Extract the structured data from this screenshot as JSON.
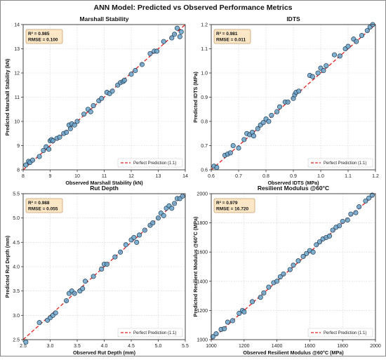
{
  "figure_title": "ANN Model: Predicted vs Observed Performance Metrics",
  "colors": {
    "point_fill": "#6aa3c8",
    "point_stroke": "#1f3a52",
    "fit_line": "#e02020",
    "grid": "#d8d8d8",
    "stats_box_fill": "#fbe7c6",
    "stats_box_stroke": "#c8a070"
  },
  "chart_data": [
    {
      "type": "scatter",
      "title": "Marshall Stability",
      "xlabel": "Observed Marshall Stability (kN)",
      "ylabel": "Predicted Marshall Stability (kN)",
      "xlim": [
        8,
        14
      ],
      "ylim": [
        8,
        14
      ],
      "xticks": [
        "8",
        "9",
        "10",
        "11",
        "12",
        "13",
        "14"
      ],
      "yticks": [
        "8",
        "9",
        "10",
        "11",
        "12",
        "13",
        "14"
      ],
      "grid": true,
      "legend_label": "Perfect Prediction (1:1)",
      "legend_position": "bottom-right",
      "stats": [
        "R² = 0.985",
        "RMSE = 0.100"
      ],
      "points": [
        [
          8.1,
          8.2
        ],
        [
          8.2,
          8.35
        ],
        [
          8.25,
          8.3
        ],
        [
          8.35,
          8.4
        ],
        [
          8.6,
          8.55
        ],
        [
          8.75,
          8.8
        ],
        [
          8.85,
          8.95
        ],
        [
          8.95,
          8.85
        ],
        [
          9.0,
          9.2
        ],
        [
          9.05,
          9.25
        ],
        [
          9.1,
          9.2
        ],
        [
          9.25,
          9.3
        ],
        [
          9.35,
          9.35
        ],
        [
          9.5,
          9.5
        ],
        [
          9.6,
          9.55
        ],
        [
          9.7,
          9.85
        ],
        [
          9.75,
          9.7
        ],
        [
          9.8,
          9.9
        ],
        [
          9.9,
          9.85
        ],
        [
          10.0,
          10.0
        ],
        [
          10.25,
          10.3
        ],
        [
          10.4,
          10.5
        ],
        [
          10.5,
          10.4
        ],
        [
          10.6,
          10.65
        ],
        [
          10.8,
          10.85
        ],
        [
          10.9,
          10.95
        ],
        [
          11.1,
          11.2
        ],
        [
          11.2,
          11.15
        ],
        [
          11.3,
          11.25
        ],
        [
          11.5,
          11.5
        ],
        [
          11.6,
          11.6
        ],
        [
          11.7,
          11.65
        ],
        [
          11.75,
          11.7
        ],
        [
          12.0,
          11.95
        ],
        [
          12.15,
          12.1
        ],
        [
          12.4,
          12.35
        ],
        [
          12.7,
          12.8
        ],
        [
          12.85,
          12.9
        ],
        [
          12.95,
          12.9
        ],
        [
          13.2,
          13.3
        ],
        [
          13.5,
          13.45
        ],
        [
          13.6,
          13.6
        ],
        [
          13.7,
          13.85
        ],
        [
          13.85,
          13.7
        ],
        [
          13.8,
          13.5
        ]
      ]
    },
    {
      "type": "scatter",
      "title": "IDTS",
      "xlabel": "Observed IDTS (MPa)",
      "ylabel": "Predicted IDTS (MPa)",
      "xlim": [
        0.6,
        1.2
      ],
      "ylim": [
        0.6,
        1.2
      ],
      "xticks": [
        "0.6",
        "0.7",
        "0.8",
        "0.9",
        "1.0",
        "1.1",
        "1.2"
      ],
      "yticks": [
        "0.6",
        "0.7",
        "0.8",
        "0.9",
        "1.0",
        "1.1",
        "1.2"
      ],
      "grid": true,
      "legend_label": "Perfect Prediction (1:1)",
      "legend_position": "bottom-right",
      "stats": [
        "R² = 0.981",
        "RMSE = 0.011"
      ],
      "points": [
        [
          0.61,
          0.615
        ],
        [
          0.62,
          0.61
        ],
        [
          0.65,
          0.66
        ],
        [
          0.66,
          0.665
        ],
        [
          0.67,
          0.67
        ],
        [
          0.68,
          0.7
        ],
        [
          0.7,
          0.69
        ],
        [
          0.72,
          0.725
        ],
        [
          0.73,
          0.75
        ],
        [
          0.74,
          0.745
        ],
        [
          0.75,
          0.755
        ],
        [
          0.755,
          0.74
        ],
        [
          0.77,
          0.77
        ],
        [
          0.78,
          0.785
        ],
        [
          0.79,
          0.795
        ],
        [
          0.8,
          0.81
        ],
        [
          0.81,
          0.8
        ],
        [
          0.82,
          0.825
        ],
        [
          0.84,
          0.84
        ],
        [
          0.85,
          0.86
        ],
        [
          0.87,
          0.88
        ],
        [
          0.88,
          0.88
        ],
        [
          0.9,
          0.895
        ],
        [
          0.905,
          0.91
        ],
        [
          0.91,
          0.92
        ],
        [
          0.92,
          0.925
        ],
        [
          0.96,
          0.99
        ],
        [
          0.97,
          0.985
        ],
        [
          0.99,
          1.0
        ],
        [
          1.0,
          1.02
        ],
        [
          1.01,
          1.01
        ],
        [
          1.02,
          1.03
        ],
        [
          1.05,
          1.075
        ],
        [
          1.07,
          1.07
        ],
        [
          1.09,
          1.1
        ],
        [
          1.1,
          1.11
        ],
        [
          1.12,
          1.14
        ],
        [
          1.13,
          1.13
        ],
        [
          1.15,
          1.155
        ],
        [
          1.17,
          1.175
        ],
        [
          1.18,
          1.19
        ],
        [
          1.19,
          1.2
        ]
      ]
    },
    {
      "type": "scatter",
      "title": "Rut Depth",
      "xlabel": "Observed Rut Depth (mm)",
      "ylabel": "Predicted Rut Depth (mm)",
      "xlim": [
        2.5,
        5.5
      ],
      "ylim": [
        2.5,
        5.5
      ],
      "xticks": [
        "2.5",
        "3.0",
        "3.5",
        "4.0",
        "4.5",
        "5.0",
        "5.5"
      ],
      "yticks": [
        "2.5",
        "3.0",
        "3.5",
        "4.0",
        "4.5",
        "5.0",
        "5.5"
      ],
      "grid": true,
      "legend_label": "Perfect Prediction (1:1)",
      "legend_position": "bottom-right",
      "stats": [
        "R² = 0.988",
        "RMSE = 0.055"
      ],
      "points": [
        [
          2.55,
          2.45
        ],
        [
          2.8,
          2.85
        ],
        [
          2.95,
          2.9
        ],
        [
          3.0,
          2.95
        ],
        [
          3.05,
          3.0
        ],
        [
          3.1,
          3.05
        ],
        [
          3.3,
          3.3
        ],
        [
          3.35,
          3.45
        ],
        [
          3.4,
          3.5
        ],
        [
          3.45,
          3.45
        ],
        [
          3.55,
          3.5
        ],
        [
          3.6,
          3.55
        ],
        [
          3.65,
          3.7
        ],
        [
          3.8,
          3.8
        ],
        [
          3.95,
          3.95
        ],
        [
          4.0,
          4.05
        ],
        [
          4.05,
          4.05
        ],
        [
          4.2,
          4.2
        ],
        [
          4.3,
          4.3
        ],
        [
          4.4,
          4.45
        ],
        [
          4.5,
          4.55
        ],
        [
          4.55,
          4.6
        ],
        [
          4.6,
          4.5
        ],
        [
          4.65,
          4.65
        ],
        [
          4.75,
          4.75
        ],
        [
          4.85,
          4.85
        ],
        [
          4.9,
          4.9
        ],
        [
          5.0,
          5.0
        ],
        [
          5.05,
          5.1
        ],
        [
          5.1,
          5.05
        ],
        [
          5.15,
          5.2
        ],
        [
          5.2,
          5.25
        ],
        [
          5.25,
          5.2
        ],
        [
          5.3,
          5.3
        ],
        [
          5.35,
          5.4
        ],
        [
          5.4,
          5.4
        ],
        [
          5.45,
          5.45
        ]
      ]
    },
    {
      "type": "scatter",
      "title": "Resilient Modulus @60°C",
      "xlabel": "Observed Resilient Modulus @60°C (MPa)",
      "ylabel": "Predicted Resilient Modulus @60°C (MPa)",
      "xlim": [
        1000,
        2000
      ],
      "ylim": [
        1000,
        2000
      ],
      "xticks": [
        "1000",
        "1200",
        "1400",
        "1600",
        "1800",
        "2000"
      ],
      "yticks": [
        "1000",
        "1200",
        "1400",
        "1600",
        "1800",
        "2000"
      ],
      "grid": true,
      "legend_label": "Perfect Prediction (1:1)",
      "legend_position": "bottom-right",
      "stats": [
        "R² = 0.979",
        "RMSE = 16.720"
      ],
      "points": [
        [
          1010,
          1020
        ],
        [
          1030,
          1040
        ],
        [
          1060,
          1070
        ],
        [
          1080,
          1075
        ],
        [
          1100,
          1120
        ],
        [
          1130,
          1130
        ],
        [
          1170,
          1180
        ],
        [
          1190,
          1200
        ],
        [
          1200,
          1190
        ],
        [
          1250,
          1260
        ],
        [
          1300,
          1290
        ],
        [
          1320,
          1320
        ],
        [
          1350,
          1360
        ],
        [
          1380,
          1390
        ],
        [
          1400,
          1400
        ],
        [
          1420,
          1430
        ],
        [
          1440,
          1450
        ],
        [
          1480,
          1480
        ],
        [
          1500,
          1510
        ],
        [
          1530,
          1540
        ],
        [
          1560,
          1570
        ],
        [
          1580,
          1590
        ],
        [
          1600,
          1610
        ],
        [
          1620,
          1600
        ],
        [
          1640,
          1650
        ],
        [
          1660,
          1670
        ],
        [
          1680,
          1690
        ],
        [
          1700,
          1700
        ],
        [
          1720,
          1710
        ],
        [
          1740,
          1750
        ],
        [
          1760,
          1770
        ],
        [
          1780,
          1780
        ],
        [
          1800,
          1810
        ],
        [
          1830,
          1820
        ],
        [
          1850,
          1860
        ],
        [
          1880,
          1870
        ],
        [
          1900,
          1910
        ],
        [
          1940,
          1950
        ],
        [
          1960,
          1970
        ],
        [
          1980,
          1990
        ]
      ]
    }
  ]
}
